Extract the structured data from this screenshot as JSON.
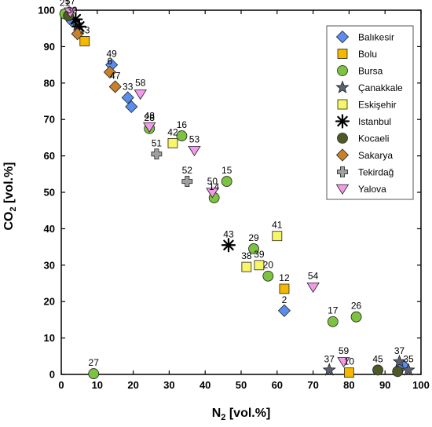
{
  "chart_data": {
    "type": "scatter",
    "xlabel": {
      "main": "N",
      "sub": "2",
      "rest": " [vol.%]"
    },
    "ylabel": {
      "main": "CO",
      "sub": "2",
      "rest": " [vol.%]"
    },
    "xlim": [
      0,
      100
    ],
    "ylim": [
      0,
      100
    ],
    "xticks": [
      0,
      10,
      20,
      30,
      40,
      50,
      60,
      70,
      80,
      90,
      100
    ],
    "yticks": [
      0,
      10,
      20,
      30,
      40,
      50,
      60,
      70,
      80,
      90,
      100
    ],
    "grid": false,
    "legend_position": "top-right",
    "series": [
      {
        "name": "Balıkesir",
        "marker": "diamond",
        "color": "#5b8def",
        "points": [
          {
            "x": 14,
            "y": 85,
            "label": "49"
          },
          {
            "x": 18.5,
            "y": 76,
            "label": "33"
          },
          {
            "x": 19.5,
            "y": 73.5,
            "label": ""
          },
          {
            "x": 62,
            "y": 17.5,
            "label": "2"
          },
          {
            "x": 95,
            "y": 2.5,
            "label": ""
          },
          {
            "x": 3,
            "y": 97,
            "label": "30"
          }
        ]
      },
      {
        "name": "Bolu",
        "marker": "square",
        "color": "#f5b800",
        "points": [
          {
            "x": 6.5,
            "y": 91.5,
            "label": "13"
          },
          {
            "x": 62,
            "y": 23.5,
            "label": "12"
          },
          {
            "x": 80,
            "y": 0.5,
            "label": "10"
          }
        ]
      },
      {
        "name": "Bursa",
        "marker": "circle",
        "color": "#7dc241",
        "points": [
          {
            "x": 1,
            "y": 99,
            "label": "21"
          },
          {
            "x": 9,
            "y": 0.2,
            "label": "27"
          },
          {
            "x": 24.5,
            "y": 67.5,
            "label": "28"
          },
          {
            "x": 33.5,
            "y": 65.5,
            "label": "16"
          },
          {
            "x": 46,
            "y": 53,
            "label": "15"
          },
          {
            "x": 42.5,
            "y": 48.5,
            "label": "14"
          },
          {
            "x": 53.5,
            "y": 34.5,
            "label": "29"
          },
          {
            "x": 57.5,
            "y": 27,
            "label": "20"
          },
          {
            "x": 75.5,
            "y": 14.5,
            "label": "17"
          },
          {
            "x": 82,
            "y": 15.8,
            "label": "26"
          }
        ]
      },
      {
        "name": "Çanakkale",
        "marker": "star",
        "color": "#5a6170",
        "points": [
          {
            "x": 74.5,
            "y": 1.2,
            "label": "37"
          },
          {
            "x": 94,
            "y": 3.5,
            "label": "37"
          },
          {
            "x": 96.5,
            "y": 1.2,
            "label": "35"
          },
          {
            "x": 4.5,
            "y": 96,
            "label": ""
          }
        ]
      },
      {
        "name": "Eskişehir",
        "marker": "square",
        "color": "#f7f56a",
        "points": [
          {
            "x": 31,
            "y": 63.5,
            "label": "42"
          },
          {
            "x": 60,
            "y": 38,
            "label": "41"
          },
          {
            "x": 51.5,
            "y": 29.5,
            "label": "38"
          },
          {
            "x": 55,
            "y": 30,
            "label": "39"
          }
        ]
      },
      {
        "name": "Istanbul",
        "marker": "asterisk",
        "color": "#000000",
        "points": [
          {
            "x": 46.5,
            "y": 35.5,
            "label": "43"
          },
          {
            "x": 4,
            "y": 97.5,
            "label": ""
          },
          {
            "x": 5,
            "y": 95.5,
            "label": ""
          }
        ]
      },
      {
        "name": "Kocaeli",
        "marker": "circle",
        "color": "#4d5a26",
        "points": [
          {
            "x": 88,
            "y": 1.2,
            "label": "45"
          },
          {
            "x": 93.5,
            "y": 0.8,
            "label": ""
          },
          {
            "x": 2,
            "y": 98.5,
            "label": ""
          }
        ]
      },
      {
        "name": "Sakarya",
        "marker": "diamond",
        "color": "#c8802a",
        "points": [
          {
            "x": 13.5,
            "y": 83,
            "label": "6"
          },
          {
            "x": 15,
            "y": 79,
            "label": "47"
          },
          {
            "x": 4.5,
            "y": 93.5,
            "label": ""
          }
        ]
      },
      {
        "name": "Tekirdağ",
        "marker": "cross",
        "color": "#a0a0a0",
        "points": [
          {
            "x": 26.5,
            "y": 60.5,
            "label": "51"
          },
          {
            "x": 35,
            "y": 53,
            "label": "52"
          }
        ]
      },
      {
        "name": "Yalova",
        "marker": "triangle",
        "color": "#f29be8",
        "points": [
          {
            "x": 22,
            "y": 77,
            "label": "58"
          },
          {
            "x": 24.5,
            "y": 68,
            "label": "48"
          },
          {
            "x": 37,
            "y": 61.5,
            "label": "53"
          },
          {
            "x": 42,
            "y": 50,
            "label": "50"
          },
          {
            "x": 70,
            "y": 24,
            "label": "54"
          },
          {
            "x": 78.5,
            "y": 3.5,
            "label": "59"
          },
          {
            "x": 2.5,
            "y": 99.5,
            "label": "57"
          }
        ]
      }
    ]
  }
}
